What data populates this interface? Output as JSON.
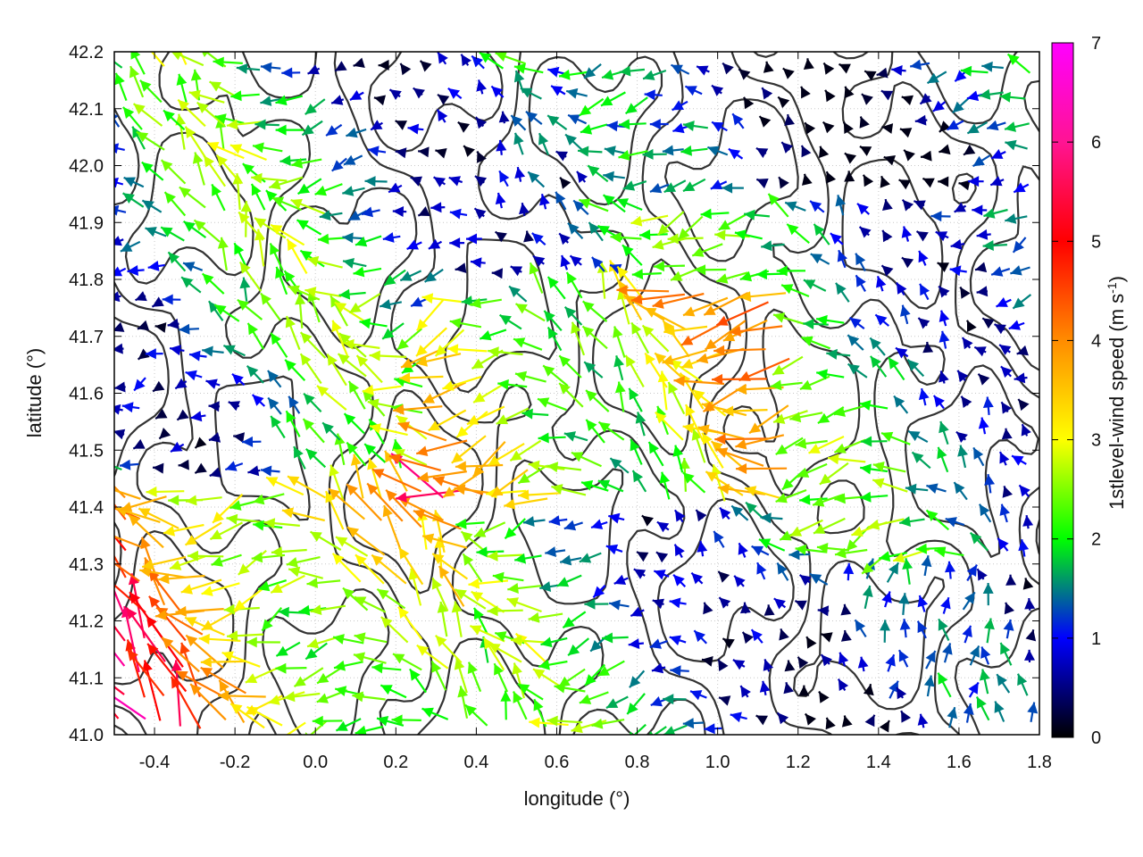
{
  "chart_data": {
    "type": "vector-field",
    "xlabel": "longitude (°)",
    "ylabel": "latitude (°)",
    "xlim": [
      -0.5,
      1.8
    ],
    "ylim": [
      41.0,
      42.2
    ],
    "x_ticks": [
      "-0.4",
      "-0.2",
      "0.0",
      "0.2",
      "0.4",
      "0.6",
      "0.8",
      "1.0",
      "1.2",
      "1.4",
      "1.6",
      "1.8"
    ],
    "x_tick_values": [
      -0.4,
      -0.2,
      0.0,
      0.2,
      0.4,
      0.6,
      0.8,
      1.0,
      1.2,
      1.4,
      1.6,
      1.8
    ],
    "y_ticks": [
      "41.0",
      "41.1",
      "41.2",
      "41.3",
      "41.4",
      "41.5",
      "41.6",
      "41.7",
      "41.8",
      "41.9",
      "42.0",
      "42.1",
      "42.2"
    ],
    "y_tick_values": [
      41.0,
      41.1,
      41.2,
      41.3,
      41.4,
      41.5,
      41.6,
      41.7,
      41.8,
      41.9,
      42.0,
      42.1,
      42.2
    ],
    "grid": true,
    "colorbar": {
      "label": "1stlevel-wind speed (m s",
      "label_sup": "-1",
      "label_end": ")",
      "range": [
        0,
        7
      ],
      "ticks": [
        "0",
        "1",
        "2",
        "3",
        "4",
        "5",
        "6",
        "7"
      ],
      "tick_values": [
        0,
        1,
        2,
        3,
        4,
        5,
        6,
        7
      ],
      "palette": [
        "#000000",
        "#0000ff",
        "#00ff00",
        "#ffff00",
        "#ff8c00",
        "#ff0000",
        "#ff00ff"
      ]
    },
    "contour_color": "#333333",
    "vector_grid": {
      "lon_step": 0.05,
      "lat_step": 0.05
    }
  }
}
